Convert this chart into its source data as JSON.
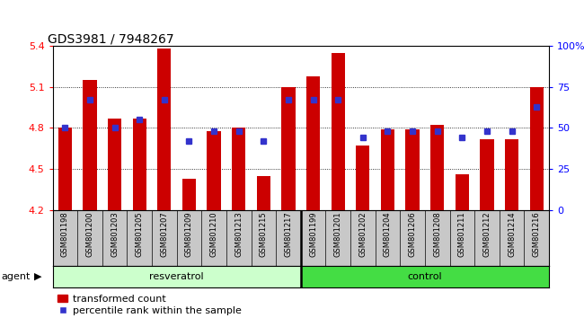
{
  "title": "GDS3981 / 7948267",
  "samples": [
    "GSM801198",
    "GSM801200",
    "GSM801203",
    "GSM801205",
    "GSM801207",
    "GSM801209",
    "GSM801210",
    "GSM801213",
    "GSM801215",
    "GSM801217",
    "GSM801199",
    "GSM801201",
    "GSM801202",
    "GSM801204",
    "GSM801206",
    "GSM801208",
    "GSM801211",
    "GSM801212",
    "GSM801214",
    "GSM801216"
  ],
  "bar_values": [
    4.8,
    5.15,
    4.87,
    4.87,
    5.38,
    4.43,
    4.78,
    4.8,
    4.45,
    5.1,
    5.18,
    5.35,
    4.67,
    4.79,
    4.79,
    4.82,
    4.46,
    4.72,
    4.72,
    5.1
  ],
  "percentile_rank": [
    50,
    67,
    50,
    55,
    67,
    42,
    48,
    48,
    42,
    67,
    67,
    67,
    44,
    48,
    48,
    48,
    44,
    48,
    48,
    63
  ],
  "resveratrol_count": 10,
  "control_count": 10,
  "ylim_left": [
    4.2,
    5.4
  ],
  "ylim_right": [
    0,
    100
  ],
  "yticks_left": [
    4.2,
    4.5,
    4.8,
    5.1,
    5.4
  ],
  "yticks_right": [
    0,
    25,
    50,
    75,
    100
  ],
  "ytick_labels_right": [
    "0",
    "25",
    "50",
    "75",
    "100%"
  ],
  "bar_color": "#cc0000",
  "dot_color": "#3333cc",
  "bar_width": 0.55,
  "resveratrol_label": "resveratrol",
  "control_label": "control",
  "agent_label": "agent",
  "legend_bar_label": "transformed count",
  "legend_dot_label": "percentile rank within the sample",
  "resveratrol_bg": "#ccffcc",
  "control_bg": "#44dd44",
  "xlabel_area_bg": "#c8c8c8",
  "title_fontsize": 10,
  "tick_fontsize": 8,
  "sample_fontsize": 6,
  "agent_fontsize": 8,
  "legend_fontsize": 8
}
